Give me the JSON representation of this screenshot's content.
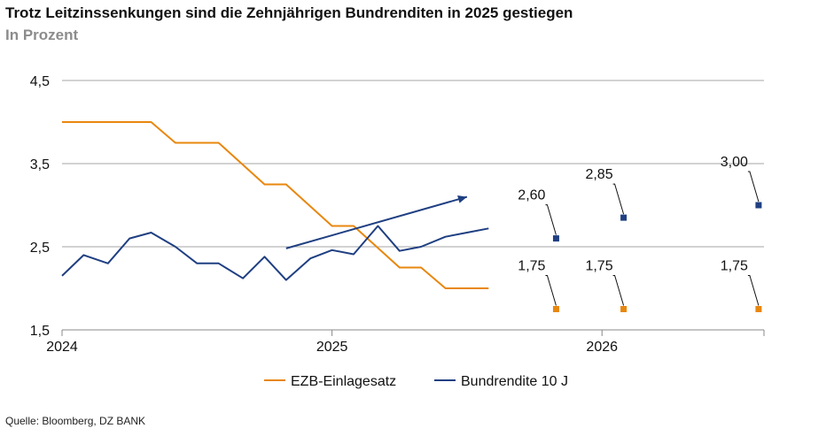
{
  "title": "Trotz Leitzinssenkungen sind die Zehnjährigen Bundrenditen in 2025 gestiegen",
  "subtitle": "In Prozent",
  "source": "Quelle: Bloomberg, DZ BANK",
  "colors": {
    "ezb": "#E8870E",
    "bund": "#1F3F82",
    "grid": "#A6A6A6",
    "axis": "#888888"
  },
  "chart_data": {
    "type": "line",
    "title": "Trotz Leitzinssenkungen sind die Zehnjährigen Bundrenditen in 2025 gestiegen",
    "ylabel": "In Prozent",
    "ylim": [
      1.5,
      4.5
    ],
    "yticks": [
      {
        "value": 1.5,
        "label": "1,5"
      },
      {
        "value": 2.5,
        "label": "2,5"
      },
      {
        "value": 3.5,
        "label": "3,5"
      },
      {
        "value": 4.5,
        "label": "4,5"
      }
    ],
    "xlim": [
      2024.0,
      2026.6
    ],
    "xticks": [
      {
        "value": 2024.0,
        "label": "2024"
      },
      {
        "value": 2025.0,
        "label": "2025"
      },
      {
        "value": 2026.0,
        "label": "2026"
      }
    ],
    "grid": true,
    "legend_position": "bottom-center",
    "series": [
      {
        "name": "EZB-Einlagesatz",
        "color": "#E8870E",
        "x": [
          2024.0,
          2024.33,
          2024.42,
          2024.58,
          2024.75,
          2024.83,
          2025.0,
          2025.08,
          2025.25,
          2025.33,
          2025.42,
          2025.58
        ],
        "values": [
          4.0,
          4.0,
          3.75,
          3.75,
          3.25,
          3.25,
          2.75,
          2.75,
          2.25,
          2.25,
          2.0,
          2.0
        ]
      },
      {
        "name": "Bundrendite 10 J",
        "color": "#1F3F82",
        "x": [
          2024.0,
          2024.08,
          2024.17,
          2024.25,
          2024.33,
          2024.42,
          2024.5,
          2024.58,
          2024.67,
          2024.75,
          2024.83,
          2024.92,
          2025.0,
          2025.08,
          2025.17,
          2025.25,
          2025.33,
          2025.42,
          2025.5,
          2025.58
        ],
        "values": [
          2.15,
          2.4,
          2.3,
          2.6,
          2.67,
          2.5,
          2.3,
          2.3,
          2.12,
          2.38,
          2.1,
          2.36,
          2.46,
          2.41,
          2.75,
          2.45,
          2.5,
          2.62,
          2.67,
          2.72
        ]
      }
    ],
    "trend_arrow": {
      "from": [
        2024.83,
        2.48
      ],
      "to": [
        2025.5,
        3.1
      ],
      "color": "#1F3F82"
    },
    "forecasts": [
      {
        "series": "Bundrendite 10 J",
        "x": 2025.83,
        "value": 2.6,
        "label": "2,60"
      },
      {
        "series": "Bundrendite 10 J",
        "x": 2026.08,
        "value": 2.85,
        "label": "2,85"
      },
      {
        "series": "Bundrendite 10 J",
        "x": 2026.58,
        "value": 3.0,
        "label": "3,00"
      },
      {
        "series": "EZB-Einlagesatz",
        "x": 2025.83,
        "value": 1.75,
        "label": "1,75"
      },
      {
        "series": "EZB-Einlagesatz",
        "x": 2026.08,
        "value": 1.75,
        "label": "1,75"
      },
      {
        "series": "EZB-Einlagesatz",
        "x": 2026.58,
        "value": 1.75,
        "label": "1,75"
      }
    ]
  }
}
